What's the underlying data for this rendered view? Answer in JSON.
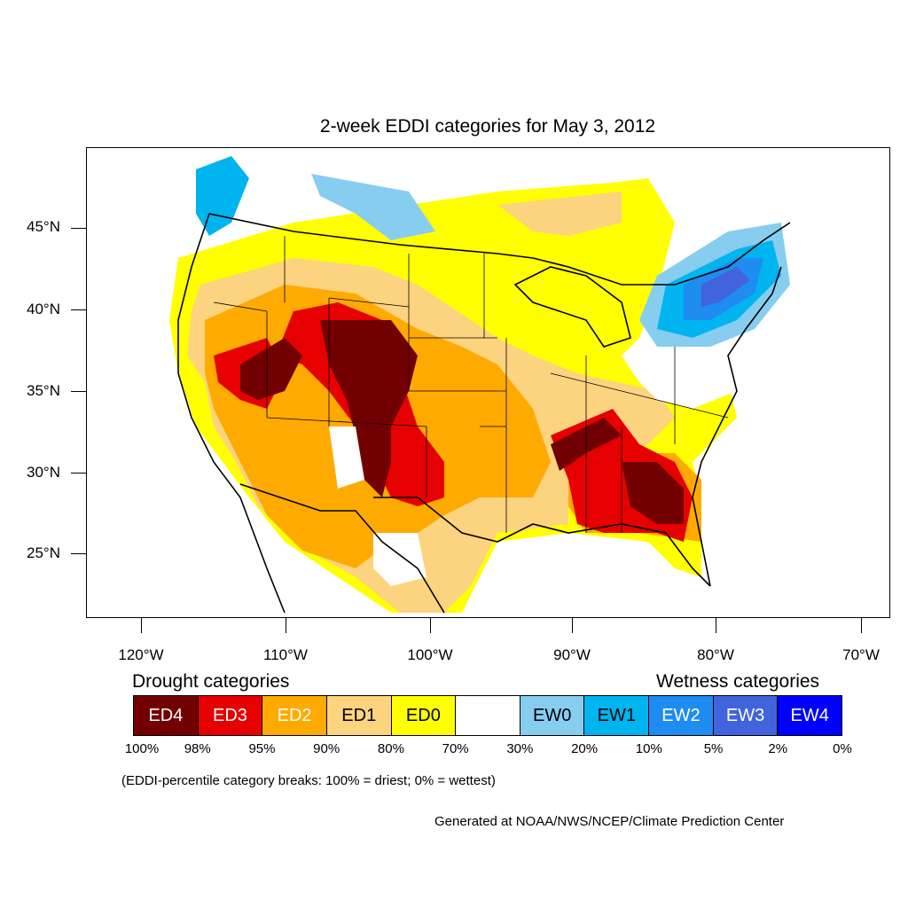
{
  "title": "2-week EDDI categories for May 3, 2012",
  "lat_labels": [
    "45°N",
    "40°N",
    "35°N",
    "30°N",
    "25°N"
  ],
  "lon_labels": [
    "120°W",
    "110°W",
    "100°W",
    "90°W",
    "80°W",
    "70°W"
  ],
  "legend": {
    "drought_heading": "Drought categories",
    "wetness_heading": "Wetness categories",
    "categories": [
      {
        "label": "ED4",
        "color": "#730000",
        "text_color": "#ffffff"
      },
      {
        "label": "ED3",
        "color": "#e60000",
        "text_color": "#ffffff"
      },
      {
        "label": "ED2",
        "color": "#ffaa00",
        "text_color": "#ffffff"
      },
      {
        "label": "ED1",
        "color": "#fcd37f",
        "text_color": "#000000"
      },
      {
        "label": "ED0",
        "color": "#ffff00",
        "text_color": "#000000"
      },
      {
        "label": "",
        "color": "#ffffff",
        "text_color": "#000000"
      },
      {
        "label": "EW0",
        "color": "#87cdf0",
        "text_color": "#000000"
      },
      {
        "label": "EW1",
        "color": "#00b4f0",
        "text_color": "#000000"
      },
      {
        "label": "EW2",
        "color": "#1e8cf0",
        "text_color": "#ffffff"
      },
      {
        "label": "EW3",
        "color": "#4163dc",
        "text_color": "#ffffff"
      },
      {
        "label": "EW4",
        "color": "#0000ff",
        "text_color": "#ffffff"
      }
    ],
    "percentiles": [
      "100%",
      "98%",
      "95%",
      "90%",
      "80%",
      "70%",
      "30%",
      "20%",
      "10%",
      "5%",
      "2%",
      "0%"
    ]
  },
  "note": "(EDDI-percentile category breaks: 100% = driest; 0% = wettest)",
  "credit": "Generated at NOAA/NWS/NCEP/Climate Prediction Center"
}
